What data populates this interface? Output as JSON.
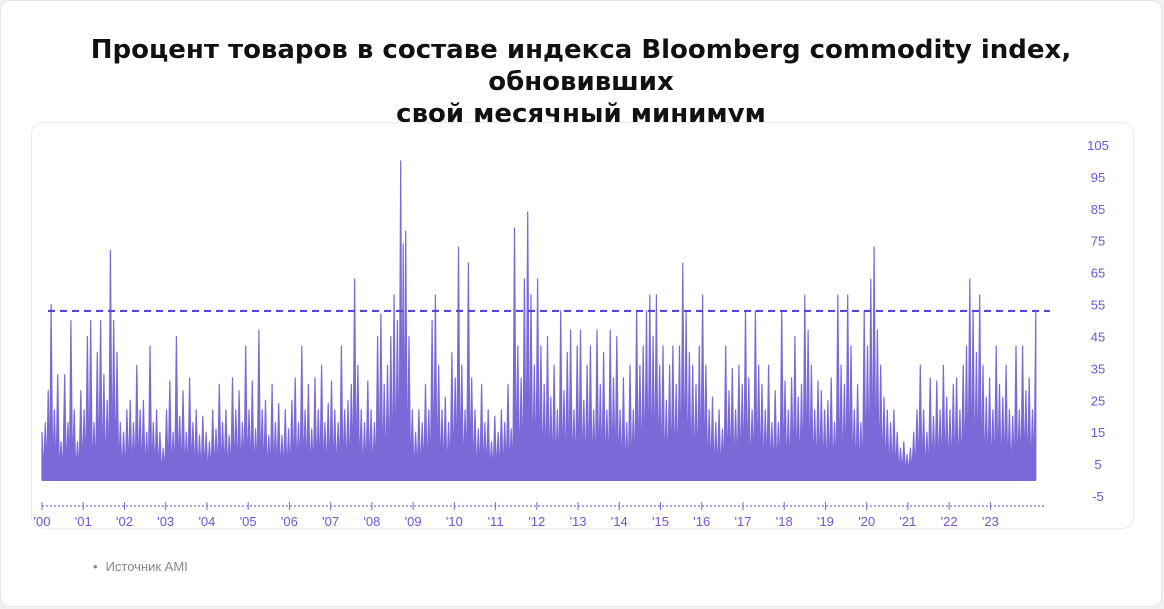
{
  "page": {
    "title_line1": "Процент товаров в составе индекса Bloomberg commodity index, обновивших",
    "title_line2": "свой месячный минимум",
    "source": "Источник AMI"
  },
  "colors": {
    "series": "#7a6ad8",
    "axis_labels": "#6a58d6",
    "threshold": "#5a45cc"
  },
  "chart_data": {
    "type": "area",
    "title": "Процент товаров в составе индекса Bloomberg commodity index, обновивших свой месячный минимум",
    "xlabel": "",
    "ylabel": "",
    "y_axis_position": "right",
    "ylim": [
      -5,
      105
    ],
    "y_ticks": [
      105,
      95,
      85,
      75,
      65,
      55,
      45,
      35,
      25,
      15,
      5,
      -5
    ],
    "x_ticks": [
      "'00",
      "'01",
      "'02",
      "'03",
      "'04",
      "'05",
      "'06",
      "'07",
      "'08",
      "'09",
      "'10",
      "'11",
      "'12",
      "'13",
      "'14",
      "'15",
      "'16",
      "'17",
      "'18",
      "'19",
      "'20",
      "'21",
      "'22",
      "'23"
    ],
    "xlim": [
      2000.0,
      2024.3
    ],
    "threshold": 53,
    "grid": false,
    "series": [
      {
        "values": [
          [
            2000.0,
            15
          ],
          [
            2000.08,
            18
          ],
          [
            2000.15,
            28
          ],
          [
            2000.22,
            55
          ],
          [
            2000.3,
            22
          ],
          [
            2000.38,
            33
          ],
          [
            2000.46,
            12
          ],
          [
            2000.55,
            33
          ],
          [
            2000.63,
            18
          ],
          [
            2000.7,
            50
          ],
          [
            2000.78,
            22
          ],
          [
            2000.86,
            12
          ],
          [
            2000.94,
            28
          ],
          [
            2001.02,
            22
          ],
          [
            2001.1,
            45
          ],
          [
            2001.18,
            50
          ],
          [
            2001.26,
            18
          ],
          [
            2001.34,
            40
          ],
          [
            2001.42,
            50
          ],
          [
            2001.5,
            33
          ],
          [
            2001.58,
            25
          ],
          [
            2001.66,
            72
          ],
          [
            2001.74,
            50
          ],
          [
            2001.82,
            40
          ],
          [
            2001.9,
            18
          ],
          [
            2001.98,
            15
          ],
          [
            2002.06,
            22
          ],
          [
            2002.14,
            25
          ],
          [
            2002.22,
            18
          ],
          [
            2002.3,
            36
          ],
          [
            2002.38,
            22
          ],
          [
            2002.46,
            25
          ],
          [
            2002.54,
            15
          ],
          [
            2002.62,
            42
          ],
          [
            2002.7,
            18
          ],
          [
            2002.78,
            22
          ],
          [
            2002.86,
            15
          ],
          [
            2002.94,
            10
          ],
          [
            2003.02,
            22
          ],
          [
            2003.1,
            31
          ],
          [
            2003.18,
            15
          ],
          [
            2003.26,
            45
          ],
          [
            2003.34,
            20
          ],
          [
            2003.42,
            28
          ],
          [
            2003.5,
            15
          ],
          [
            2003.58,
            32
          ],
          [
            2003.66,
            18
          ],
          [
            2003.74,
            22
          ],
          [
            2003.82,
            14
          ],
          [
            2003.9,
            20
          ],
          [
            2003.98,
            15
          ],
          [
            2004.06,
            12
          ],
          [
            2004.14,
            22
          ],
          [
            2004.22,
            16
          ],
          [
            2004.3,
            30
          ],
          [
            2004.38,
            18
          ],
          [
            2004.46,
            22
          ],
          [
            2004.54,
            14
          ],
          [
            2004.62,
            32
          ],
          [
            2004.7,
            22
          ],
          [
            2004.78,
            28
          ],
          [
            2004.86,
            18
          ],
          [
            2004.94,
            42
          ],
          [
            2005.02,
            22
          ],
          [
            2005.1,
            31
          ],
          [
            2005.18,
            16
          ],
          [
            2005.26,
            47
          ],
          [
            2005.34,
            22
          ],
          [
            2005.42,
            25
          ],
          [
            2005.5,
            14
          ],
          [
            2005.58,
            30
          ],
          [
            2005.66,
            18
          ],
          [
            2005.74,
            24
          ],
          [
            2005.82,
            14
          ],
          [
            2005.9,
            22
          ],
          [
            2005.98,
            16
          ],
          [
            2006.06,
            25
          ],
          [
            2006.14,
            32
          ],
          [
            2006.22,
            18
          ],
          [
            2006.3,
            42
          ],
          [
            2006.38,
            22
          ],
          [
            2006.46,
            30
          ],
          [
            2006.54,
            16
          ],
          [
            2006.62,
            32
          ],
          [
            2006.7,
            22
          ],
          [
            2006.78,
            36
          ],
          [
            2006.86,
            18
          ],
          [
            2006.94,
            24
          ],
          [
            2007.02,
            31
          ],
          [
            2007.1,
            22
          ],
          [
            2007.18,
            18
          ],
          [
            2007.26,
            42
          ],
          [
            2007.34,
            22
          ],
          [
            2007.42,
            25
          ],
          [
            2007.5,
            30
          ],
          [
            2007.58,
            63
          ],
          [
            2007.66,
            36
          ],
          [
            2007.74,
            22
          ],
          [
            2007.82,
            18
          ],
          [
            2007.9,
            31
          ],
          [
            2007.98,
            22
          ],
          [
            2008.06,
            18
          ],
          [
            2008.14,
            45
          ],
          [
            2008.22,
            52
          ],
          [
            2008.3,
            30
          ],
          [
            2008.38,
            36
          ],
          [
            2008.46,
            45
          ],
          [
            2008.54,
            58
          ],
          [
            2008.62,
            50
          ],
          [
            2008.7,
            100
          ],
          [
            2008.76,
            74
          ],
          [
            2008.82,
            78
          ],
          [
            2008.9,
            45
          ],
          [
            2008.98,
            22
          ],
          [
            2009.06,
            15
          ],
          [
            2009.14,
            22
          ],
          [
            2009.22,
            18
          ],
          [
            2009.3,
            30
          ],
          [
            2009.38,
            22
          ],
          [
            2009.46,
            50
          ],
          [
            2009.54,
            58
          ],
          [
            2009.62,
            36
          ],
          [
            2009.7,
            22
          ],
          [
            2009.78,
            26
          ],
          [
            2009.86,
            18
          ],
          [
            2009.94,
            40
          ],
          [
            2010.02,
            32
          ],
          [
            2010.1,
            73
          ],
          [
            2010.18,
            36
          ],
          [
            2010.26,
            22
          ],
          [
            2010.34,
            68
          ],
          [
            2010.42,
            32
          ],
          [
            2010.5,
            22
          ],
          [
            2010.58,
            16
          ],
          [
            2010.66,
            30
          ],
          [
            2010.74,
            18
          ],
          [
            2010.82,
            22
          ],
          [
            2010.9,
            12
          ],
          [
            2010.98,
            20
          ],
          [
            2011.06,
            15
          ],
          [
            2011.14,
            22
          ],
          [
            2011.22,
            18
          ],
          [
            2011.3,
            30
          ],
          [
            2011.38,
            16
          ],
          [
            2011.46,
            79
          ],
          [
            2011.54,
            42
          ],
          [
            2011.62,
            32
          ],
          [
            2011.7,
            63
          ],
          [
            2011.78,
            84
          ],
          [
            2011.86,
            58
          ],
          [
            2011.94,
            36
          ],
          [
            2012.02,
            63
          ],
          [
            2012.1,
            42
          ],
          [
            2012.18,
            30
          ],
          [
            2012.26,
            45
          ],
          [
            2012.34,
            26
          ],
          [
            2012.42,
            36
          ],
          [
            2012.5,
            22
          ],
          [
            2012.58,
            53
          ],
          [
            2012.66,
            28
          ],
          [
            2012.74,
            40
          ],
          [
            2012.82,
            47
          ],
          [
            2012.9,
            22
          ],
          [
            2012.98,
            42
          ],
          [
            2013.06,
            47
          ],
          [
            2013.14,
            25
          ],
          [
            2013.22,
            36
          ],
          [
            2013.3,
            42
          ],
          [
            2013.38,
            22
          ],
          [
            2013.46,
            47
          ],
          [
            2013.54,
            30
          ],
          [
            2013.62,
            40
          ],
          [
            2013.7,
            22
          ],
          [
            2013.78,
            47
          ],
          [
            2013.86,
            32
          ],
          [
            2013.94,
            45
          ],
          [
            2014.02,
            22
          ],
          [
            2014.1,
            32
          ],
          [
            2014.18,
            18
          ],
          [
            2014.26,
            36
          ],
          [
            2014.34,
            22
          ],
          [
            2014.42,
            53
          ],
          [
            2014.5,
            36
          ],
          [
            2014.58,
            42
          ],
          [
            2014.66,
            53
          ],
          [
            2014.74,
            58
          ],
          [
            2014.82,
            45
          ],
          [
            2014.9,
            58
          ],
          [
            2014.98,
            36
          ],
          [
            2015.06,
            42
          ],
          [
            2015.14,
            25
          ],
          [
            2015.22,
            36
          ],
          [
            2015.3,
            42
          ],
          [
            2015.38,
            30
          ],
          [
            2015.46,
            42
          ],
          [
            2015.54,
            68
          ],
          [
            2015.62,
            53
          ],
          [
            2015.7,
            40
          ],
          [
            2015.78,
            36
          ],
          [
            2015.86,
            30
          ],
          [
            2015.94,
            42
          ],
          [
            2016.02,
            58
          ],
          [
            2016.1,
            36
          ],
          [
            2016.18,
            22
          ],
          [
            2016.26,
            26
          ],
          [
            2016.34,
            18
          ],
          [
            2016.42,
            22
          ],
          [
            2016.5,
            16
          ],
          [
            2016.58,
            42
          ],
          [
            2016.66,
            28
          ],
          [
            2016.74,
            35
          ],
          [
            2016.82,
            22
          ],
          [
            2016.9,
            36
          ],
          [
            2016.98,
            30
          ],
          [
            2017.06,
            53
          ],
          [
            2017.14,
            32
          ],
          [
            2017.22,
            22
          ],
          [
            2017.3,
            53
          ],
          [
            2017.38,
            36
          ],
          [
            2017.46,
            30
          ],
          [
            2017.54,
            22
          ],
          [
            2017.62,
            36
          ],
          [
            2017.7,
            18
          ],
          [
            2017.78,
            28
          ],
          [
            2017.86,
            18
          ],
          [
            2017.94,
            53
          ],
          [
            2018.02,
            31
          ],
          [
            2018.1,
            22
          ],
          [
            2018.18,
            32
          ],
          [
            2018.26,
            45
          ],
          [
            2018.34,
            26
          ],
          [
            2018.42,
            30
          ],
          [
            2018.5,
            58
          ],
          [
            2018.58,
            47
          ],
          [
            2018.66,
            36
          ],
          [
            2018.74,
            22
          ],
          [
            2018.82,
            31
          ],
          [
            2018.9,
            28
          ],
          [
            2018.98,
            22
          ],
          [
            2019.06,
            25
          ],
          [
            2019.14,
            32
          ],
          [
            2019.22,
            18
          ],
          [
            2019.3,
            58
          ],
          [
            2019.38,
            36
          ],
          [
            2019.46,
            30
          ],
          [
            2019.54,
            58
          ],
          [
            2019.62,
            42
          ],
          [
            2019.7,
            22
          ],
          [
            2019.78,
            30
          ],
          [
            2019.86,
            18
          ],
          [
            2019.94,
            53
          ],
          [
            2020.02,
            42
          ],
          [
            2020.1,
            63
          ],
          [
            2020.18,
            73
          ],
          [
            2020.26,
            47
          ],
          [
            2020.34,
            36
          ],
          [
            2020.42,
            26
          ],
          [
            2020.5,
            22
          ],
          [
            2020.58,
            18
          ],
          [
            2020.66,
            22
          ],
          [
            2020.74,
            15
          ],
          [
            2020.82,
            10
          ],
          [
            2020.9,
            12
          ],
          [
            2020.98,
            8
          ],
          [
            2021.06,
            10
          ],
          [
            2021.14,
            15
          ],
          [
            2021.22,
            22
          ],
          [
            2021.3,
            36
          ],
          [
            2021.38,
            22
          ],
          [
            2021.46,
            15
          ],
          [
            2021.54,
            32
          ],
          [
            2021.62,
            20
          ],
          [
            2021.7,
            31
          ],
          [
            2021.78,
            22
          ],
          [
            2021.86,
            36
          ],
          [
            2021.94,
            26
          ],
          [
            2022.02,
            22
          ],
          [
            2022.1,
            30
          ],
          [
            2022.18,
            32
          ],
          [
            2022.26,
            22
          ],
          [
            2022.34,
            36
          ],
          [
            2022.42,
            42
          ],
          [
            2022.5,
            63
          ],
          [
            2022.58,
            53
          ],
          [
            2022.66,
            40
          ],
          [
            2022.74,
            58
          ],
          [
            2022.82,
            36
          ],
          [
            2022.9,
            26
          ],
          [
            2022.98,
            32
          ],
          [
            2023.06,
            22
          ],
          [
            2023.14,
            42
          ],
          [
            2023.22,
            30
          ],
          [
            2023.3,
            26
          ],
          [
            2023.38,
            36
          ],
          [
            2023.46,
            22
          ],
          [
            2023.54,
            20
          ],
          [
            2023.62,
            42
          ],
          [
            2023.7,
            22
          ],
          [
            2023.78,
            42
          ],
          [
            2023.86,
            28
          ],
          [
            2023.94,
            32
          ],
          [
            2024.02,
            22
          ],
          [
            2024.1,
            53
          ]
        ]
      }
    ]
  }
}
